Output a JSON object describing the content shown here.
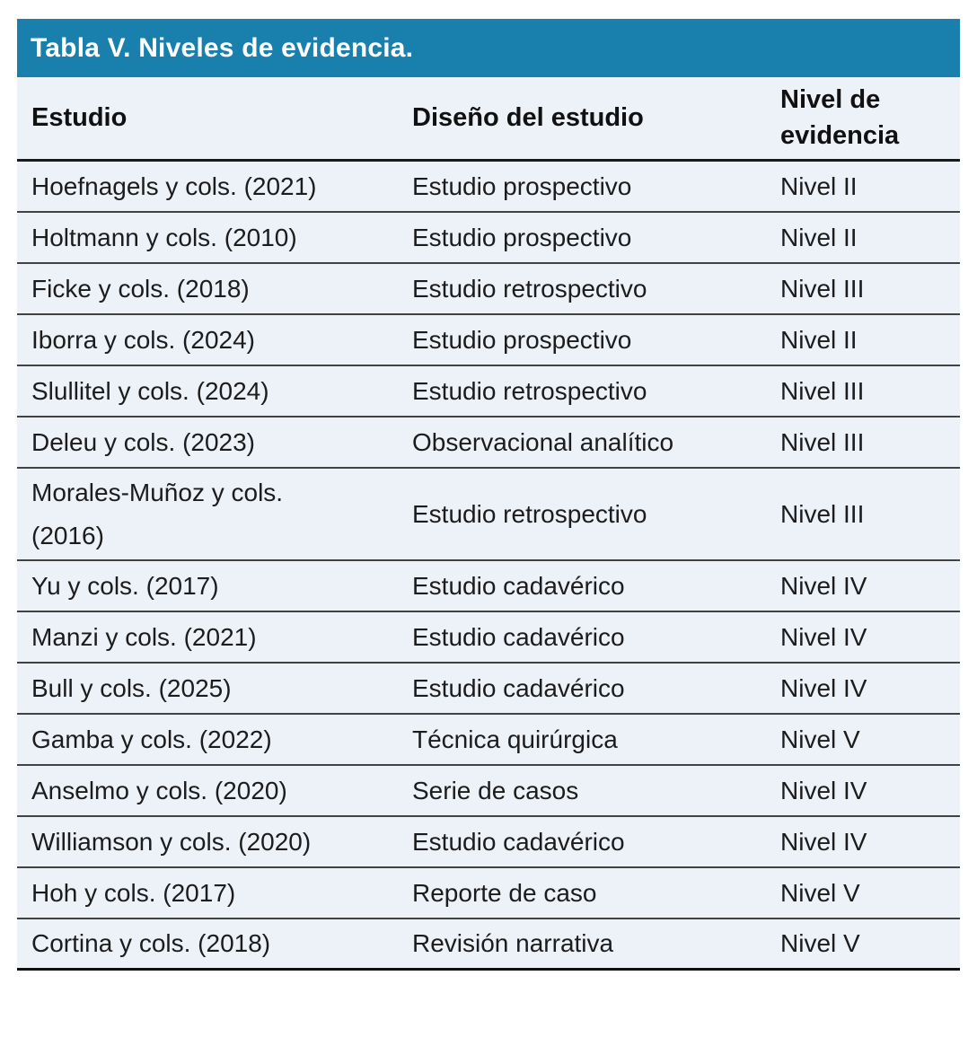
{
  "table": {
    "title": "Tabla V. Niveles de evidencia.",
    "columns": [
      "Estudio",
      "Diseño del estudio",
      "Nivel de evidencia"
    ],
    "rows": [
      {
        "study": "Hoefnagels y cols. (2021)",
        "design": "Estudio prospectivo",
        "level": "Nivel II"
      },
      {
        "study": "Holtmann y cols. (2010)",
        "design": "Estudio prospectivo",
        "level": "Nivel II"
      },
      {
        "study": "Ficke y cols. (2018)",
        "design": "Estudio retrospectivo",
        "level": "Nivel III"
      },
      {
        "study": "Iborra y cols. (2024)",
        "design": "Estudio prospectivo",
        "level": "Nivel II"
      },
      {
        "study": "Slullitel y cols. (2024)",
        "design": "Estudio retrospectivo",
        "level": "Nivel III"
      },
      {
        "study": "Deleu y cols. (2023)",
        "design": "Observacional analítico",
        "level": "Nivel III"
      },
      {
        "study": "Morales-Muñoz y cols.\n(2016)",
        "design": "Estudio retrospectivo",
        "level": "Nivel III"
      },
      {
        "study": "Yu y cols. (2017)",
        "design": "Estudio cadavérico",
        "level": "Nivel IV"
      },
      {
        "study": "Manzi y cols. (2021)",
        "design": "Estudio cadavérico",
        "level": "Nivel IV"
      },
      {
        "study": "Bull y cols. (2025)",
        "design": "Estudio cadavérico",
        "level": "Nivel IV"
      },
      {
        "study": "Gamba y cols. (2022)",
        "design": "Técnica quirúrgica",
        "level": "Nivel V"
      },
      {
        "study": "Anselmo y cols. (2020)",
        "design": "Serie de casos",
        "level": "Nivel IV"
      },
      {
        "study": "Williamson y cols. (2020)",
        "design": "Estudio cadavérico",
        "level": "Nivel IV"
      },
      {
        "study": "Hoh y cols. (2017)",
        "design": "Reporte de caso",
        "level": "Nivel V"
      },
      {
        "study": "Cortina y cols. (2018)",
        "design": "Revisión narrativa",
        "level": "Nivel V"
      }
    ],
    "colors": {
      "title_bar_bg": "#1980ad",
      "title_text": "#ffffff",
      "body_bg": "#edf1f8",
      "rule_dark": "#1a1a1a",
      "rule_row": "#424242",
      "text": "#1c1c1c"
    }
  }
}
